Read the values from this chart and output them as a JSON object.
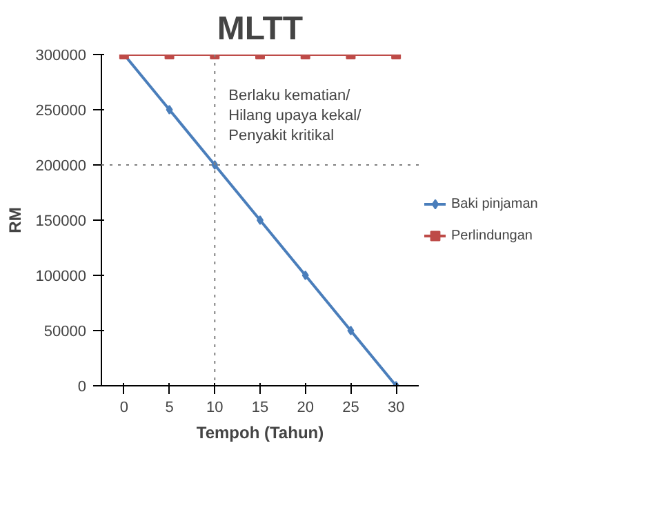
{
  "chart_data": {
    "type": "line",
    "title": "MLTT",
    "xlabel": "Tempoh (Tahun)",
    "ylabel": "RM",
    "x": [
      0,
      5,
      10,
      15,
      20,
      25,
      30
    ],
    "series": [
      {
        "name": "Baki pinjaman",
        "color": "#4a7ebb",
        "values": [
          300000,
          250000,
          200000,
          150000,
          100000,
          50000,
          0
        ],
        "marker": "diamond"
      },
      {
        "name": "Perlindungan",
        "color": "#be4b48",
        "values": [
          300000,
          300000,
          300000,
          300000,
          300000,
          300000,
          300000
        ],
        "marker": "square"
      }
    ],
    "xlim": [
      -2.5,
      32.5
    ],
    "xticks": [
      0,
      5,
      10,
      15,
      20,
      25,
      30
    ],
    "ylim": [
      0,
      300000
    ],
    "yticks": [
      0,
      50000,
      100000,
      150000,
      200000,
      250000,
      300000
    ],
    "ref_lines": [
      {
        "axis": "x",
        "value": 10,
        "line_style": "dotted",
        "color": "#808080"
      },
      {
        "axis": "y",
        "value": 200000,
        "line_style": "dotted",
        "color": "#808080"
      }
    ],
    "annotations": [
      {
        "text": "Berlaku kematian/ Hilang upaya kekal/ Penyakit kritikal",
        "x": 10,
        "y": 200000
      }
    ],
    "grid": false,
    "legend": "right",
    "line_style": "solid"
  }
}
